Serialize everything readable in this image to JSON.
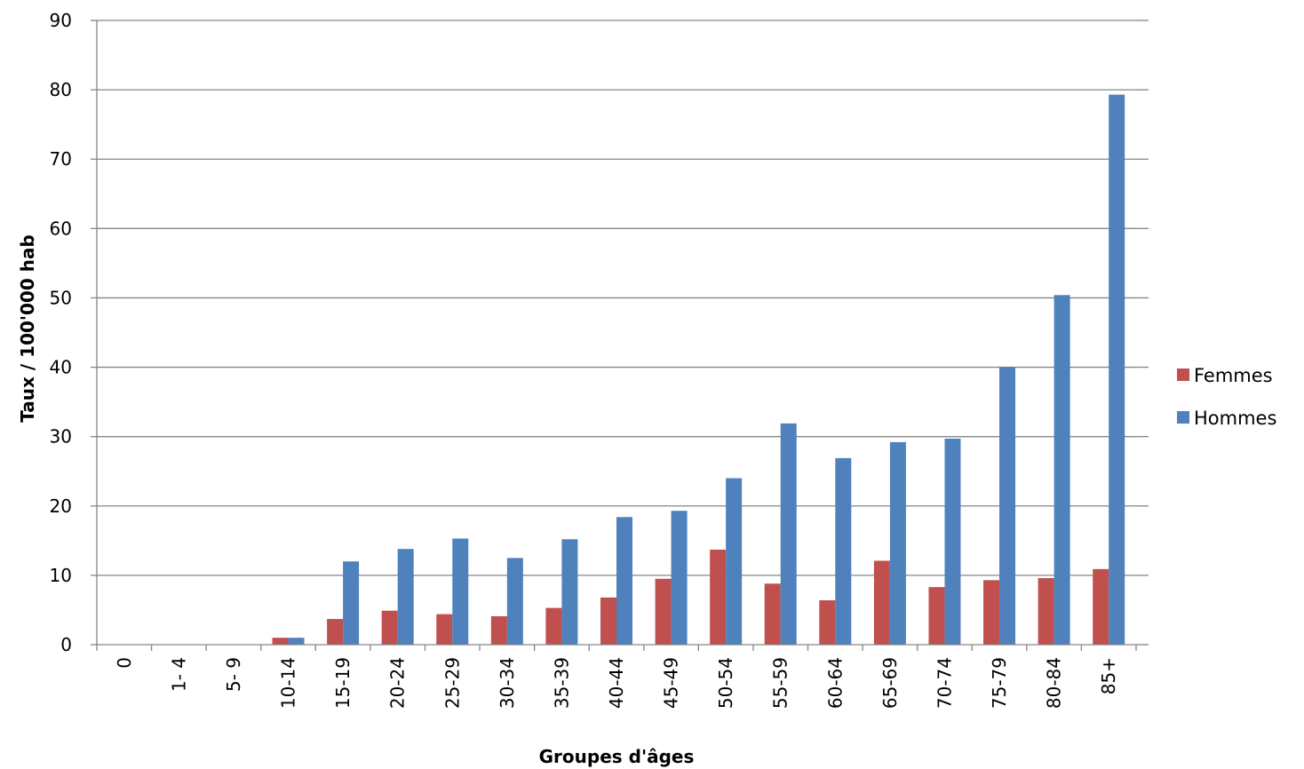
{
  "chart_data": {
    "type": "bar",
    "title": "",
    "xlabel": "Groupes d'âges",
    "ylabel": "Taux  / 100'000 hab",
    "ylim": [
      0,
      90
    ],
    "yticks": [
      0,
      10,
      20,
      30,
      40,
      50,
      60,
      70,
      80,
      90
    ],
    "grid": true,
    "legend_position": "right",
    "categories": [
      "0",
      "1- 4",
      "5- 9",
      "10-14",
      "15-19",
      "20-24",
      "25-29",
      "30-34",
      "35-39",
      "40-44",
      "45-49",
      "50-54",
      "55-59",
      "60-64",
      "65-69",
      "70-74",
      "75-79",
      "80-84",
      "85+"
    ],
    "series": [
      {
        "name": "Femmes",
        "color": "#c0504d",
        "values": [
          0,
          0,
          0,
          1.0,
          3.7,
          4.9,
          4.4,
          4.1,
          5.3,
          6.8,
          9.5,
          13.7,
          8.8,
          6.4,
          12.1,
          8.3,
          9.3,
          9.6,
          10.9
        ]
      },
      {
        "name": "Hommes",
        "color": "#4f81bd",
        "values": [
          0,
          0,
          0,
          1.0,
          12.0,
          13.8,
          15.3,
          12.5,
          15.2,
          18.4,
          19.3,
          24.0,
          31.9,
          26.9,
          29.2,
          29.7,
          40.0,
          50.4,
          79.3
        ]
      }
    ]
  }
}
